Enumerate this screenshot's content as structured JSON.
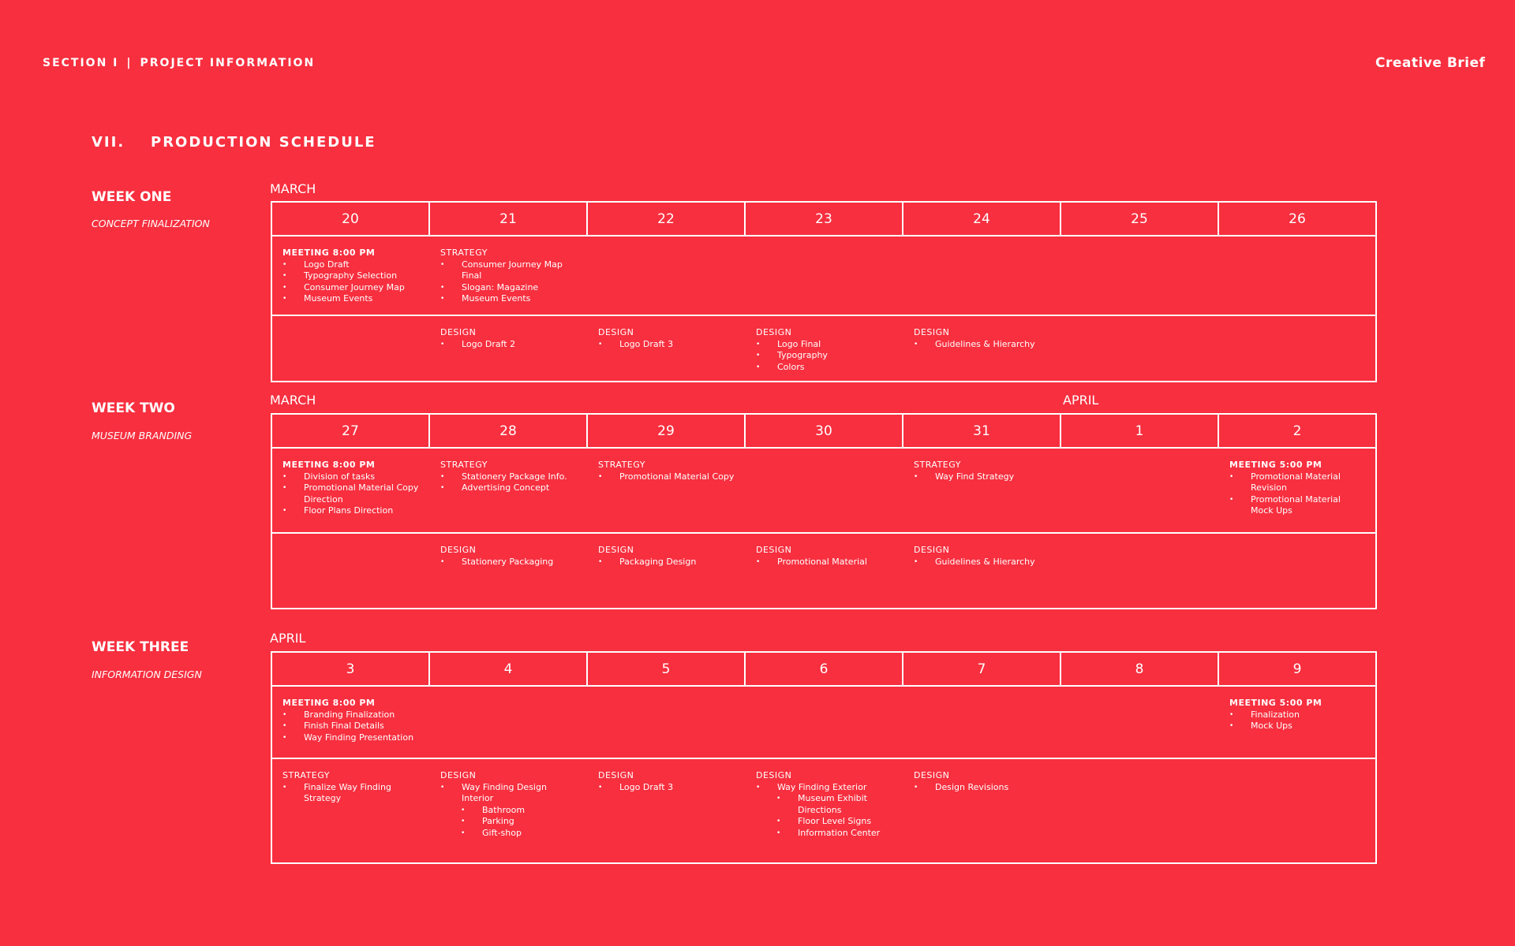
{
  "header": {
    "section": "SECTION I",
    "separator": "|",
    "project": "PROJECT INFORMATION",
    "doc_title": "Creative Brief"
  },
  "section": {
    "number": "VII.",
    "title": "PRODUCTION SCHEDULE"
  },
  "weeks": [
    {
      "title": "WEEK ONE",
      "subtitle": "CONCEPT FINALIZATION",
      "months": [
        "MARCH",
        ""
      ],
      "days": [
        "20",
        "21",
        "22",
        "23",
        "24",
        "25",
        "26"
      ]
    },
    {
      "title": "WEEK TWO",
      "subtitle": "MUSEUM BRANDING",
      "months": [
        "MARCH",
        "APRIL"
      ],
      "days": [
        "27",
        "28",
        "29",
        "30",
        "31",
        "1",
        "2"
      ]
    },
    {
      "title": "WEEK THREE",
      "subtitle": "INFORMATION DESIGN",
      "months": [
        "APRIL",
        ""
      ],
      "days": [
        "3",
        "4",
        "5",
        "6",
        "7",
        "8",
        "9"
      ]
    }
  ],
  "w1": {
    "r1": {
      "c1": {
        "head": "MEETING 8:00 PM",
        "items": [
          "Logo Draft",
          "Typography Selection",
          "Consumer Journey Map",
          "Museum Events"
        ]
      },
      "c2": {
        "head": "STRATEGY",
        "items": [
          "Consumer Journey Map",
          "Final",
          "Slogan: Magazine",
          "Museum Events"
        ]
      }
    },
    "r2": {
      "c2": {
        "head": "DESIGN",
        "items": [
          "Logo Draft 2"
        ]
      },
      "c3": {
        "head": "DESIGN",
        "items": [
          "Logo Draft 3"
        ]
      },
      "c4": {
        "head": "DESIGN",
        "items": [
          "Logo Final",
          "Typography",
          "Colors"
        ]
      },
      "c5": {
        "head": "DESIGN",
        "items": [
          "Guidelines & Hierarchy"
        ]
      }
    }
  },
  "w2": {
    "r1": {
      "c1": {
        "head": "MEETING 8:00 PM",
        "items": [
          "Division of tasks",
          "Promotional Material Copy",
          "Direction",
          "Floor Plans Direction"
        ]
      },
      "c2": {
        "head": "STRATEGY",
        "items": [
          "Stationery Package Info.",
          "Advertising Concept"
        ]
      },
      "c3": {
        "head": "STRATEGY",
        "items": [
          "Promotional Material Copy"
        ]
      },
      "c5": {
        "head": "STRATEGY",
        "items": [
          "Way Find Strategy"
        ]
      },
      "c7": {
        "head": "MEETING 5:00 PM",
        "items": [
          "Promotional Material",
          "Revision",
          "Promotional Material",
          "Mock Ups"
        ]
      }
    },
    "r2": {
      "c2": {
        "head": "DESIGN",
        "items": [
          "Stationery Packaging"
        ]
      },
      "c3": {
        "head": "DESIGN",
        "items": [
          "Packaging Design"
        ]
      },
      "c4": {
        "head": "DESIGN",
        "items": [
          "Promotional Material"
        ]
      },
      "c5": {
        "head": "DESIGN",
        "items": [
          "Guidelines & Hierarchy"
        ]
      }
    }
  },
  "w3": {
    "r1": {
      "c1": {
        "head": "MEETING 8:00 PM",
        "items": [
          "Branding Finalization",
          "Finish Final Details",
          "Way Finding Presentation"
        ]
      },
      "c7": {
        "head": "MEETING 5:00 PM",
        "items": [
          "Finalization",
          "Mock Ups"
        ]
      }
    },
    "r2": {
      "c1": {
        "head": "STRATEGY",
        "items": [
          "Finalize Way Finding",
          "Strategy"
        ]
      },
      "c2": {
        "head": "DESIGN",
        "items": [
          "Way Finding Design",
          "Interior",
          "Bathroom",
          "Parking",
          "Gift-shop"
        ]
      },
      "c3": {
        "head": "DESIGN",
        "items": [
          "Logo Draft 3"
        ]
      },
      "c4": {
        "head": "DESIGN",
        "items": [
          "Way Finding Exterior",
          "Museum Exhibit",
          "Directions",
          "Floor Level Signs",
          "Information Center"
        ]
      },
      "c5": {
        "head": "DESIGN",
        "items": [
          "Design Revisions"
        ]
      }
    }
  }
}
